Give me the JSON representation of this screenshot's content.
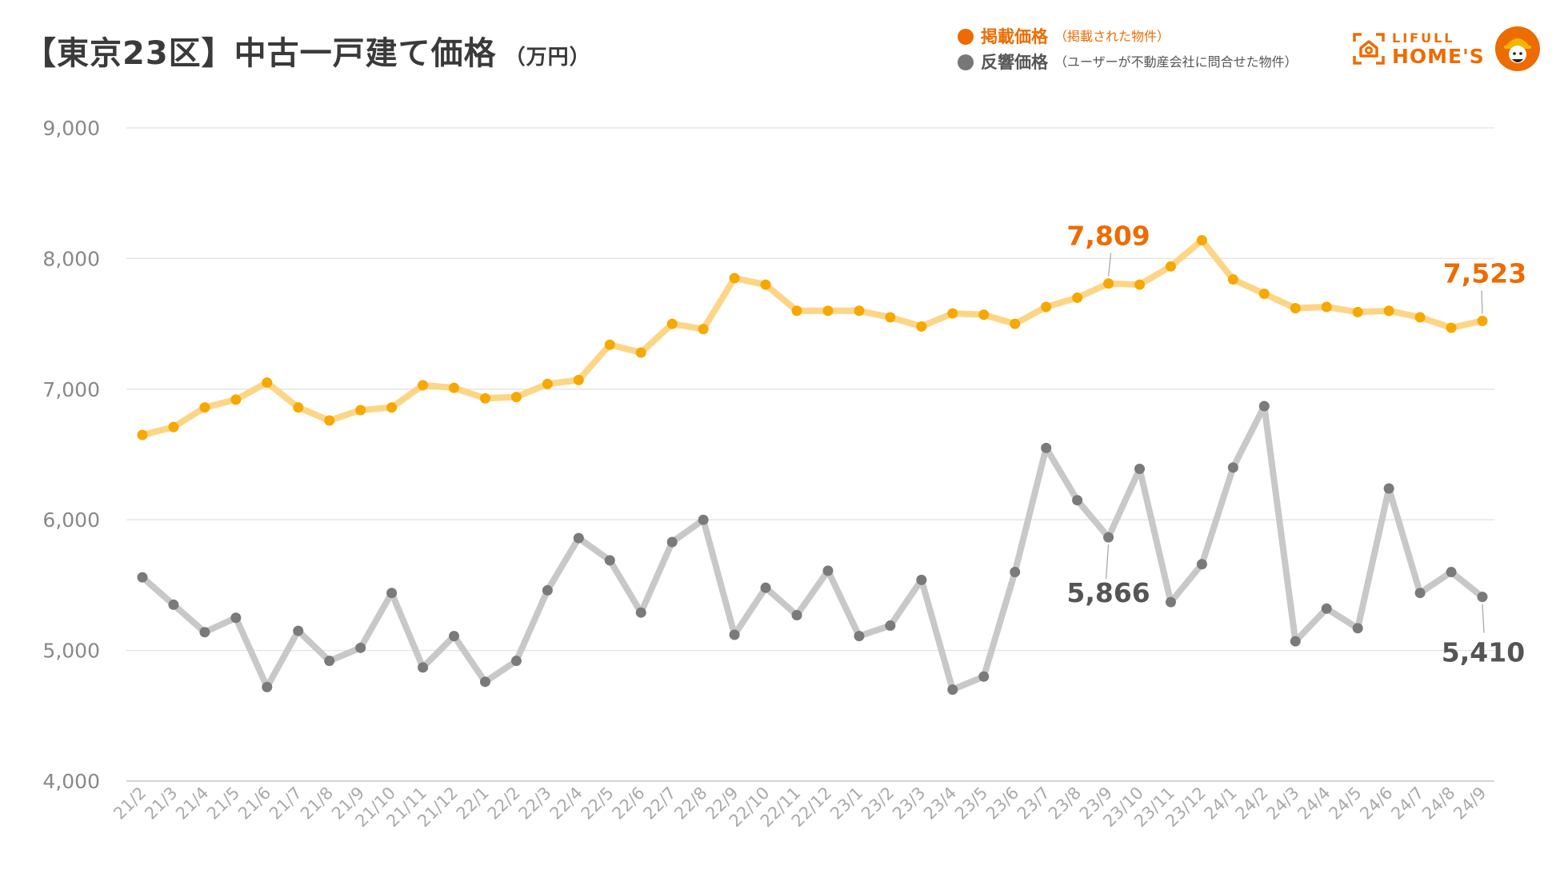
{
  "title": "【東京23区】中古一戸建て価格",
  "unit": "（万円）",
  "legend": [
    {
      "name": "掲載価格",
      "note": "（掲載された物件）",
      "color": "#ED6C00",
      "dot_color": "#ED6C00",
      "icon": "legend-dot"
    },
    {
      "name": "反響価格",
      "note": "（ユーザーが不動産会社に問合せた物件）",
      "color": "#555555",
      "dot_color": "#777777",
      "icon": "legend-dot"
    }
  ],
  "logo": {
    "line1": "LIFULL",
    "line2": "HOME'S",
    "color": "#ED6C00",
    "icon": "house-icon",
    "mascot": "mascot-icon"
  },
  "chart_data": {
    "type": "line",
    "title": "【東京23区】中古一戸建て価格",
    "ylabel": "（万円）",
    "xlabel": "",
    "ylim": [
      4000,
      9000
    ],
    "yticks": [
      4000,
      5000,
      6000,
      7000,
      8000,
      9000
    ],
    "ytick_labels": [
      "4,000",
      "5,000",
      "6,000",
      "7,000",
      "8,000",
      "9,000"
    ],
    "grid": true,
    "categories": [
      "21/2",
      "21/3",
      "21/4",
      "21/5",
      "21/6",
      "21/7",
      "21/8",
      "21/9",
      "21/10",
      "21/11",
      "21/12",
      "22/1",
      "22/2",
      "22/3",
      "22/4",
      "22/5",
      "22/6",
      "22/7",
      "22/8",
      "22/9",
      "22/10",
      "22/11",
      "22/12",
      "23/1",
      "23/2",
      "23/3",
      "23/4",
      "23/5",
      "23/6",
      "23/7",
      "23/8",
      "23/9",
      "23/10",
      "23/11",
      "23/12",
      "24/1",
      "24/2",
      "24/3",
      "24/4",
      "24/5",
      "24/6",
      "24/7",
      "24/8",
      "24/9"
    ],
    "series": [
      {
        "name": "掲載価格",
        "line_color": "#FCD686",
        "marker_color": "#F6A800",
        "label_color": "#ED6C00",
        "values": [
          6650,
          6710,
          6860,
          6920,
          7050,
          6860,
          6760,
          6840,
          6860,
          7030,
          7010,
          6930,
          6940,
          7040,
          7070,
          7340,
          7280,
          7500,
          7460,
          7850,
          7800,
          7600,
          7600,
          7600,
          7550,
          7480,
          7580,
          7570,
          7500,
          7630,
          7700,
          7809,
          7800,
          7940,
          8140,
          7840,
          7730,
          7620,
          7630,
          7590,
          7600,
          7550,
          7470,
          7523
        ],
        "annotations": [
          {
            "category": "23/9",
            "value": 7809,
            "label": "7,809"
          },
          {
            "category": "24/9",
            "value": 7523,
            "label": "7,523"
          }
        ]
      },
      {
        "name": "反響価格",
        "line_color": "#C8C8C8",
        "marker_color": "#7A7A7A",
        "label_color": "#555555",
        "values": [
          5560,
          5350,
          5140,
          5250,
          4720,
          5150,
          4920,
          5020,
          5440,
          4870,
          5110,
          4760,
          4920,
          5460,
          5860,
          5690,
          5290,
          5830,
          6000,
          5120,
          5480,
          5270,
          5610,
          5110,
          5190,
          5540,
          4700,
          4800,
          5600,
          6550,
          6150,
          5866,
          6390,
          5370,
          5660,
          6400,
          6870,
          5070,
          5320,
          5170,
          6240,
          5440,
          5600,
          5410
        ],
        "annotations": [
          {
            "category": "23/9",
            "value": 5866,
            "label": "5,866"
          },
          {
            "category": "24/9",
            "value": 5410,
            "label": "5,410"
          }
        ]
      }
    ]
  }
}
